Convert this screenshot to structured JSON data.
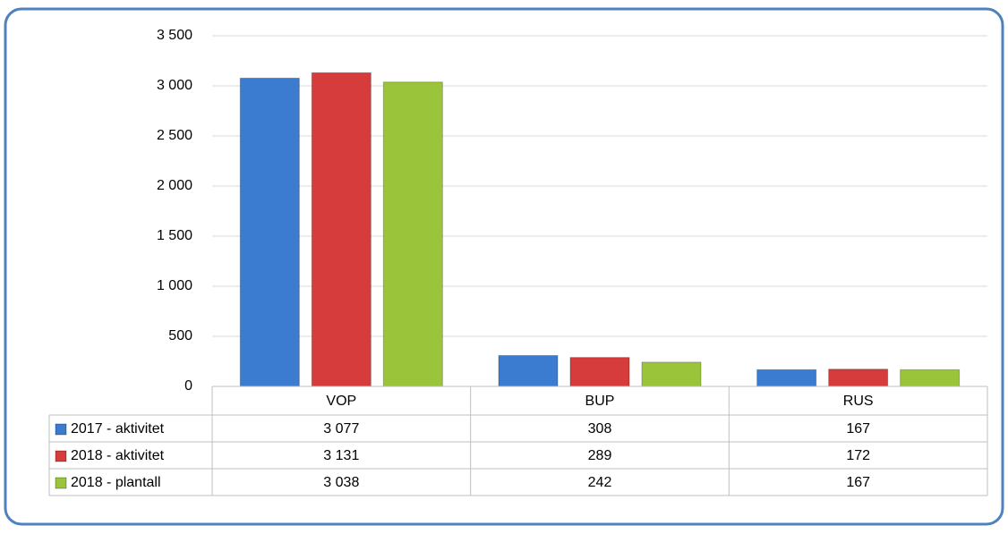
{
  "chart_data": {
    "type": "bar",
    "categories": [
      "VOP",
      "BUP",
      "RUS"
    ],
    "series": [
      {
        "name": "2017 - aktivitet",
        "color": "#3b7bd0",
        "values": [
          3077,
          308,
          167
        ],
        "value_labels": [
          "3 077",
          "308",
          "167"
        ]
      },
      {
        "name": "2018 - aktivitet",
        "color": "#d63c3c",
        "values": [
          3131,
          289,
          172
        ],
        "value_labels": [
          "3 131",
          "289",
          "172"
        ]
      },
      {
        "name": "2018 - plantall",
        "color": "#9ac43a",
        "values": [
          3038,
          242,
          167
        ],
        "value_labels": [
          "3 038",
          "242",
          "167"
        ]
      }
    ],
    "ylim": [
      0,
      3500
    ],
    "yticks": [
      0,
      500,
      {
        "value": 1000,
        "label": "1 000"
      },
      {
        "value": 1500,
        "label": "1 500"
      },
      {
        "value": 2000,
        "label": "2 000"
      },
      {
        "value": 2500,
        "label": "2 500"
      },
      {
        "value": 3000,
        "label": "3 000"
      },
      {
        "value": 3500,
        "label": "3 500"
      }
    ],
    "grid": true
  }
}
